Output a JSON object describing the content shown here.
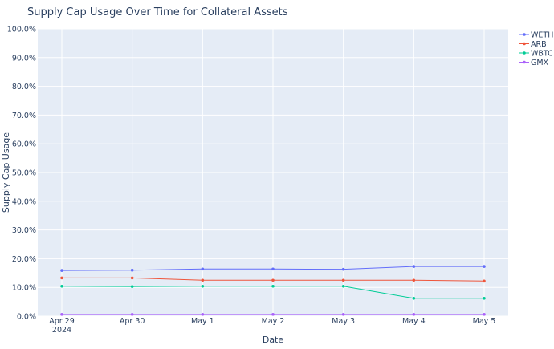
{
  "chart_data": {
    "type": "line",
    "title": "Supply Cap Usage Over Time for Collateral Assets",
    "xlabel": "Date",
    "ylabel": "Supply Cap Usage",
    "x": [
      "2024-04-29",
      "2024-04-30",
      "2024-05-01",
      "2024-05-02",
      "2024-05-03",
      "2024-05-04",
      "2024-05-05"
    ],
    "x_tick_labels": [
      "Apr 29",
      "Apr 30",
      "May 1",
      "May 2",
      "May 3",
      "May 4",
      "May 5"
    ],
    "x_year_label": "2024",
    "y_tick_labels": [
      "0.0%",
      "10.0%",
      "20.0%",
      "30.0%",
      "40.0%",
      "50.0%",
      "60.0%",
      "70.0%",
      "80.0%",
      "90.0%",
      "100.0%"
    ],
    "ylim": [
      0,
      1
    ],
    "grid": true,
    "legend_position": "top-right",
    "series": [
      {
        "name": "WETH",
        "color": "#636efa",
        "values": [
          0.159,
          0.16,
          0.164,
          0.164,
          0.163,
          0.173,
          0.173
        ]
      },
      {
        "name": "ARB",
        "color": "#ef553b",
        "values": [
          0.133,
          0.133,
          0.125,
          0.125,
          0.125,
          0.125,
          0.122
        ]
      },
      {
        "name": "WBTC",
        "color": "#00cc96",
        "values": [
          0.104,
          0.103,
          0.104,
          0.104,
          0.104,
          0.062,
          0.062
        ]
      },
      {
        "name": "GMX",
        "color": "#ab63fa",
        "values": [
          0.006,
          0.006,
          0.006,
          0.006,
          0.006,
          0.006,
          0.006
        ]
      }
    ]
  }
}
